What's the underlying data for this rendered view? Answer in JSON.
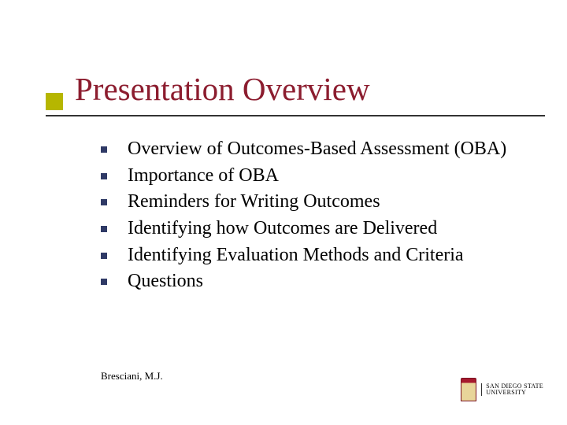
{
  "colors": {
    "title": "#8c1d2f",
    "body": "#000000",
    "bullet": "#2f3a66",
    "accent_square": "#b6b600",
    "rule": "#333333",
    "background": "#ffffff"
  },
  "typography": {
    "title_fontsize": 41,
    "body_fontsize": 24,
    "footer_fontsize": 13,
    "title_family": "Garamond, Georgia, serif",
    "body_family": "Garamond, Georgia, serif",
    "footer_family": "Comic Sans MS, cursive"
  },
  "title": "Presentation Overview",
  "bullets": [
    "Overview of Outcomes-Based Assessment (OBA)",
    "Importance of OBA",
    "Reminders for Writing Outcomes",
    "Identifying how Outcomes are Delivered",
    "Identifying Evaluation Methods and Criteria",
    "Questions"
  ],
  "footer": {
    "author": "Bresciani, M.J.",
    "logo": {
      "line1": "SAN DIEGO STATE",
      "line2": "UNIVERSITY"
    }
  }
}
